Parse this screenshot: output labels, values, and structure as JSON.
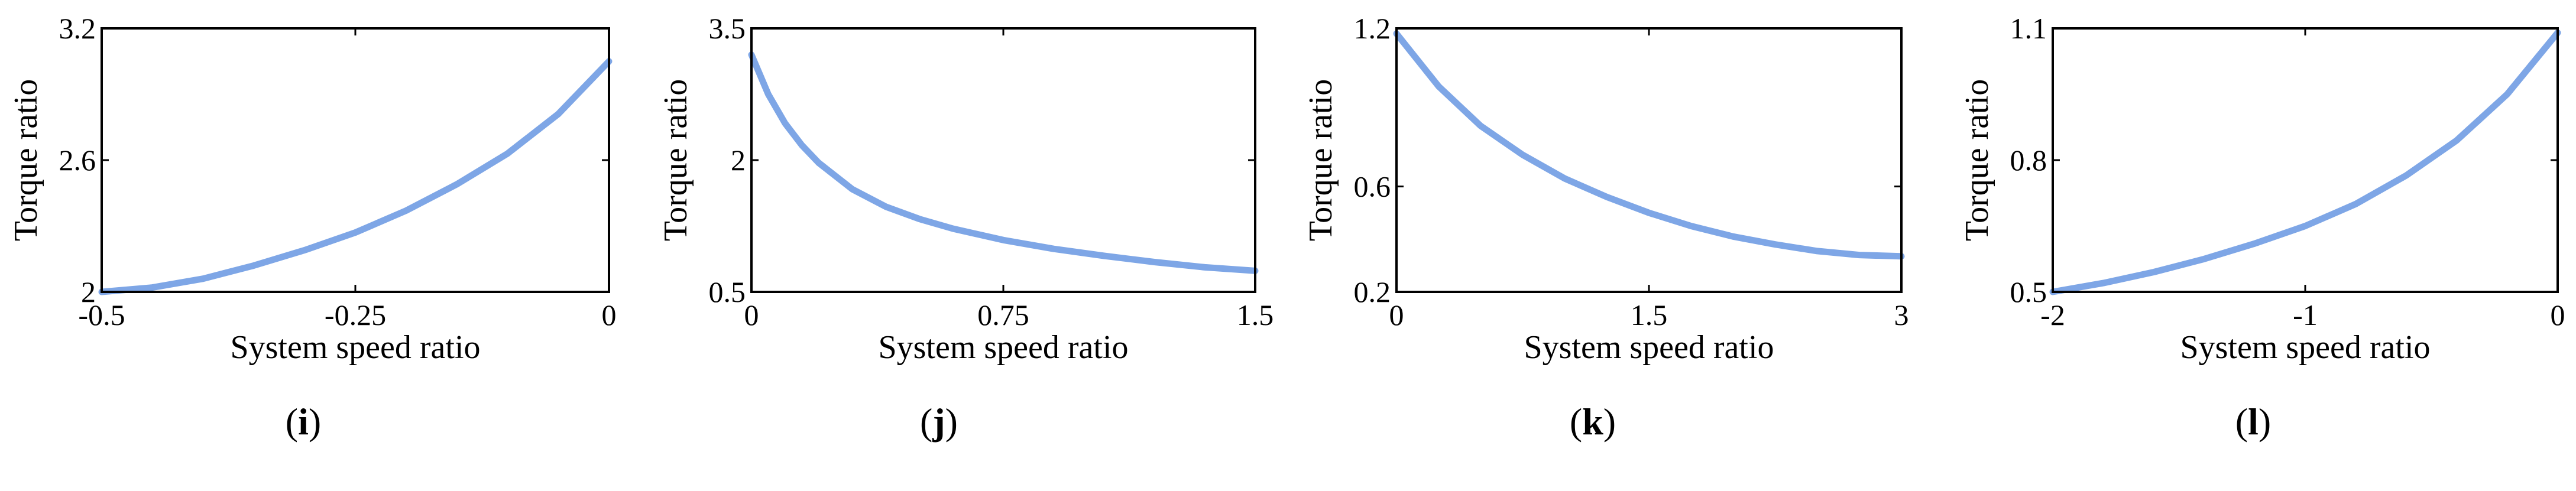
{
  "chart_data": [
    {
      "type": "line",
      "panel": "i",
      "xlabel": "System speed ratio",
      "ylabel": "Torque ratio",
      "xlim": [
        -0.5,
        0
      ],
      "ylim": [
        2,
        3.2
      ],
      "xticks": [
        -0.5,
        -0.25,
        0
      ],
      "yticks": [
        2,
        2.6,
        3.2
      ],
      "xtick_labels": [
        "-0.5",
        "-0.25",
        "0"
      ],
      "ytick_labels": [
        "2",
        "2.6",
        "3.2"
      ],
      "series": [
        {
          "color": "#7ea6e6",
          "x": [
            -0.5,
            -0.45,
            -0.4,
            -0.35,
            -0.3,
            -0.25,
            -0.2,
            -0.15,
            -0.1,
            -0.05,
            0
          ],
          "y": [
            2.0,
            2.02,
            2.06,
            2.12,
            2.19,
            2.27,
            2.37,
            2.49,
            2.63,
            2.81,
            3.05
          ]
        }
      ]
    },
    {
      "type": "line",
      "panel": "j",
      "xlabel": "System speed ratio",
      "ylabel": "Torque ratio",
      "xlim": [
        0,
        1.5
      ],
      "ylim": [
        0.5,
        3.5
      ],
      "xticks": [
        0,
        0.75,
        1.5
      ],
      "yticks": [
        0.5,
        2,
        3.5
      ],
      "xtick_labels": [
        "0",
        "0.75",
        "1.5"
      ],
      "ytick_labels": [
        "0.5",
        "2",
        "3.5"
      ],
      "series": [
        {
          "color": "#7ea6e6",
          "x": [
            0,
            0.05,
            0.1,
            0.15,
            0.2,
            0.3,
            0.4,
            0.5,
            0.6,
            0.75,
            0.9,
            1.05,
            1.2,
            1.35,
            1.5
          ],
          "y": [
            3.2,
            2.75,
            2.42,
            2.17,
            1.97,
            1.67,
            1.47,
            1.33,
            1.22,
            1.09,
            0.99,
            0.91,
            0.84,
            0.78,
            0.74
          ]
        }
      ]
    },
    {
      "type": "line",
      "panel": "k",
      "xlabel": "System speed ratio",
      "ylabel": "Torque ratio",
      "xlim": [
        0,
        3
      ],
      "ylim": [
        0.2,
        1.2
      ],
      "xticks": [
        0,
        1.5,
        3
      ],
      "yticks": [
        0.2,
        0.6,
        1.2
      ],
      "xtick_labels": [
        "0",
        "1.5",
        "3"
      ],
      "ytick_labels": [
        "0.2",
        "0.6",
        "1.2"
      ],
      "series": [
        {
          "color": "#7ea6e6",
          "x": [
            0,
            0.25,
            0.5,
            0.75,
            1.0,
            1.25,
            1.5,
            1.75,
            2.0,
            2.25,
            2.5,
            2.75,
            3.0
          ],
          "y": [
            1.18,
            0.98,
            0.83,
            0.72,
            0.63,
            0.56,
            0.5,
            0.45,
            0.41,
            0.38,
            0.355,
            0.34,
            0.335
          ]
        }
      ]
    },
    {
      "type": "line",
      "panel": "l",
      "xlabel": "System speed ratio",
      "ylabel": "Torque ratio",
      "xlim": [
        -2,
        0
      ],
      "ylim": [
        0.5,
        1.1
      ],
      "xticks": [
        -2,
        -1,
        0
      ],
      "yticks": [
        0.5,
        0.8,
        1.1
      ],
      "xtick_labels": [
        "-2",
        "-1",
        "0"
      ],
      "ytick_labels": [
        "0.5",
        "0.8",
        "1.1"
      ],
      "series": [
        {
          "color": "#7ea6e6",
          "x": [
            -2.0,
            -1.8,
            -1.6,
            -1.4,
            -1.2,
            -1.0,
            -0.8,
            -0.6,
            -0.4,
            -0.2,
            0
          ],
          "y": [
            0.5,
            0.52,
            0.545,
            0.575,
            0.61,
            0.65,
            0.7,
            0.765,
            0.845,
            0.95,
            1.09
          ]
        }
      ]
    }
  ]
}
